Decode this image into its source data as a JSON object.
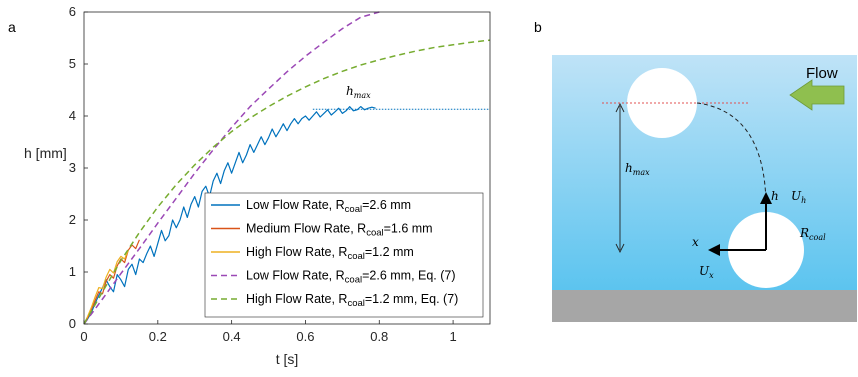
{
  "panels": {
    "a_label": "a",
    "b_label": "b"
  },
  "chart_data": {
    "type": "line",
    "xlabel": "t [s]",
    "ylabel": "h [mm]",
    "xlim": [
      0,
      1.1
    ],
    "ylim": [
      0,
      6
    ],
    "xticks": [
      "0",
      "0.2",
      "0.4",
      "0.6",
      "0.8",
      "1"
    ],
    "yticks": [
      "0",
      "1",
      "2",
      "3",
      "4",
      "5",
      "6"
    ],
    "grid": false,
    "legend_position": "bottom-right",
    "annotation": {
      "text": "h",
      "subscript": "max",
      "y": 4.13,
      "x_start": 0.62,
      "x_end": 1.1
    },
    "series": [
      {
        "name": "Low Flow Rate, R",
        "sub": "coal",
        "suffix": "=2.6 mm",
        "color": "#0072BD",
        "style": "solid",
        "x": [
          0,
          0.01,
          0.02,
          0.03,
          0.04,
          0.05,
          0.06,
          0.07,
          0.08,
          0.09,
          0.1,
          0.11,
          0.12,
          0.13,
          0.14,
          0.15,
          0.16,
          0.17,
          0.18,
          0.19,
          0.2,
          0.21,
          0.22,
          0.23,
          0.24,
          0.25,
          0.26,
          0.27,
          0.28,
          0.29,
          0.3,
          0.31,
          0.32,
          0.33,
          0.34,
          0.35,
          0.36,
          0.37,
          0.38,
          0.39,
          0.4,
          0.41,
          0.42,
          0.43,
          0.44,
          0.45,
          0.46,
          0.47,
          0.48,
          0.49,
          0.5,
          0.51,
          0.52,
          0.53,
          0.54,
          0.55,
          0.56,
          0.57,
          0.58,
          0.59,
          0.6,
          0.61,
          0.62,
          0.63,
          0.64,
          0.65,
          0.66,
          0.67,
          0.68,
          0.69,
          0.7,
          0.71,
          0.72,
          0.73,
          0.74,
          0.75,
          0.76,
          0.77,
          0.78,
          0.79
        ],
        "y": [
          0,
          0.1,
          0.22,
          0.4,
          0.55,
          0.7,
          0.85,
          0.72,
          0.62,
          0.95,
          0.85,
          0.72,
          1.05,
          1.15,
          0.95,
          1.25,
          1.18,
          1.35,
          1.5,
          1.3,
          1.55,
          1.8,
          1.6,
          1.7,
          2.0,
          1.85,
          2.0,
          2.25,
          2.05,
          2.3,
          2.45,
          2.25,
          2.55,
          2.65,
          2.45,
          2.75,
          2.9,
          2.7,
          2.95,
          3.1,
          2.9,
          3.1,
          3.3,
          3.1,
          3.25,
          3.45,
          3.3,
          3.45,
          3.6,
          3.45,
          3.58,
          3.75,
          3.6,
          3.72,
          3.85,
          3.72,
          3.85,
          3.95,
          3.85,
          3.95,
          4.0,
          3.92,
          4.0,
          4.08,
          3.98,
          4.05,
          4.12,
          4.02,
          4.08,
          4.15,
          4.05,
          4.1,
          4.18,
          4.1,
          4.12,
          4.18,
          4.12,
          4.15,
          4.17,
          4.15
        ]
      },
      {
        "name": "Medium Flow Rate, R",
        "sub": "coal",
        "suffix": "=1.6 mm",
        "color": "#D95319",
        "style": "solid",
        "x": [
          0,
          0.01,
          0.02,
          0.03,
          0.04,
          0.05,
          0.06,
          0.07,
          0.08,
          0.09,
          0.1,
          0.11,
          0.12,
          0.13,
          0.14,
          0.15
        ],
        "y": [
          0,
          0.12,
          0.28,
          0.45,
          0.62,
          0.58,
          0.82,
          0.95,
          0.88,
          1.12,
          1.25,
          1.18,
          1.42,
          1.52,
          1.45,
          1.62
        ]
      },
      {
        "name": "High Flow Rate, R",
        "sub": "coal",
        "suffix": "=1.2 mm",
        "color": "#EDB120",
        "style": "solid",
        "x": [
          0,
          0.01,
          0.02,
          0.03,
          0.04,
          0.05,
          0.06,
          0.07,
          0.08,
          0.09,
          0.1,
          0.11,
          0.12
        ],
        "y": [
          0,
          0.15,
          0.32,
          0.52,
          0.7,
          0.68,
          0.9,
          1.05,
          0.98,
          1.2,
          1.3,
          1.25,
          1.42
        ]
      },
      {
        "name": "Low Flow Rate, R",
        "sub": "coal",
        "suffix": "=2.6 mm, Eq. (7)",
        "color": "#9B48B6",
        "style": "dashed",
        "x": [
          0,
          0.05,
          0.1,
          0.15,
          0.2,
          0.25,
          0.3,
          0.35,
          0.4,
          0.45,
          0.5,
          0.55,
          0.6,
          0.65,
          0.7,
          0.75,
          0.8
        ],
        "y": [
          0,
          0.48,
          0.97,
          1.45,
          1.94,
          2.42,
          2.9,
          3.35,
          3.78,
          4.18,
          4.52,
          4.85,
          5.15,
          5.42,
          5.68,
          5.9,
          6.05
        ]
      },
      {
        "name": "High Flow Rate, R",
        "sub": "coal",
        "suffix": "=1.2 mm, Eq. (7)",
        "color": "#77AC30",
        "style": "dashed",
        "x": [
          0,
          0.05,
          0.1,
          0.15,
          0.2,
          0.25,
          0.3,
          0.35,
          0.4,
          0.45,
          0.5,
          0.55,
          0.6,
          0.65,
          0.7,
          0.75,
          0.8,
          0.85,
          0.9,
          0.95,
          1.0,
          1.05,
          1.1
        ],
        "y": [
          0,
          0.62,
          1.22,
          1.76,
          2.25,
          2.68,
          3.06,
          3.4,
          3.7,
          3.96,
          4.18,
          4.38,
          4.56,
          4.72,
          4.86,
          4.98,
          5.08,
          5.17,
          5.25,
          5.32,
          5.37,
          5.42,
          5.46
        ]
      }
    ]
  },
  "diagram": {
    "flow_label": "Flow",
    "h_max": {
      "base": "h",
      "sub": "max"
    },
    "h": "h",
    "U_h": {
      "base": "U",
      "sub": "h"
    },
    "x": "x",
    "U_x": {
      "base": "U",
      "sub": "x"
    },
    "R_coal": {
      "base": "R",
      "sub": "coal"
    },
    "colors": {
      "fluid_top": "#bfe3f7",
      "fluid_bottom": "#5cc4ef",
      "floor": "#a6a6a6",
      "arrow": "#8fbf4f",
      "ref_line": "#e05050"
    }
  }
}
